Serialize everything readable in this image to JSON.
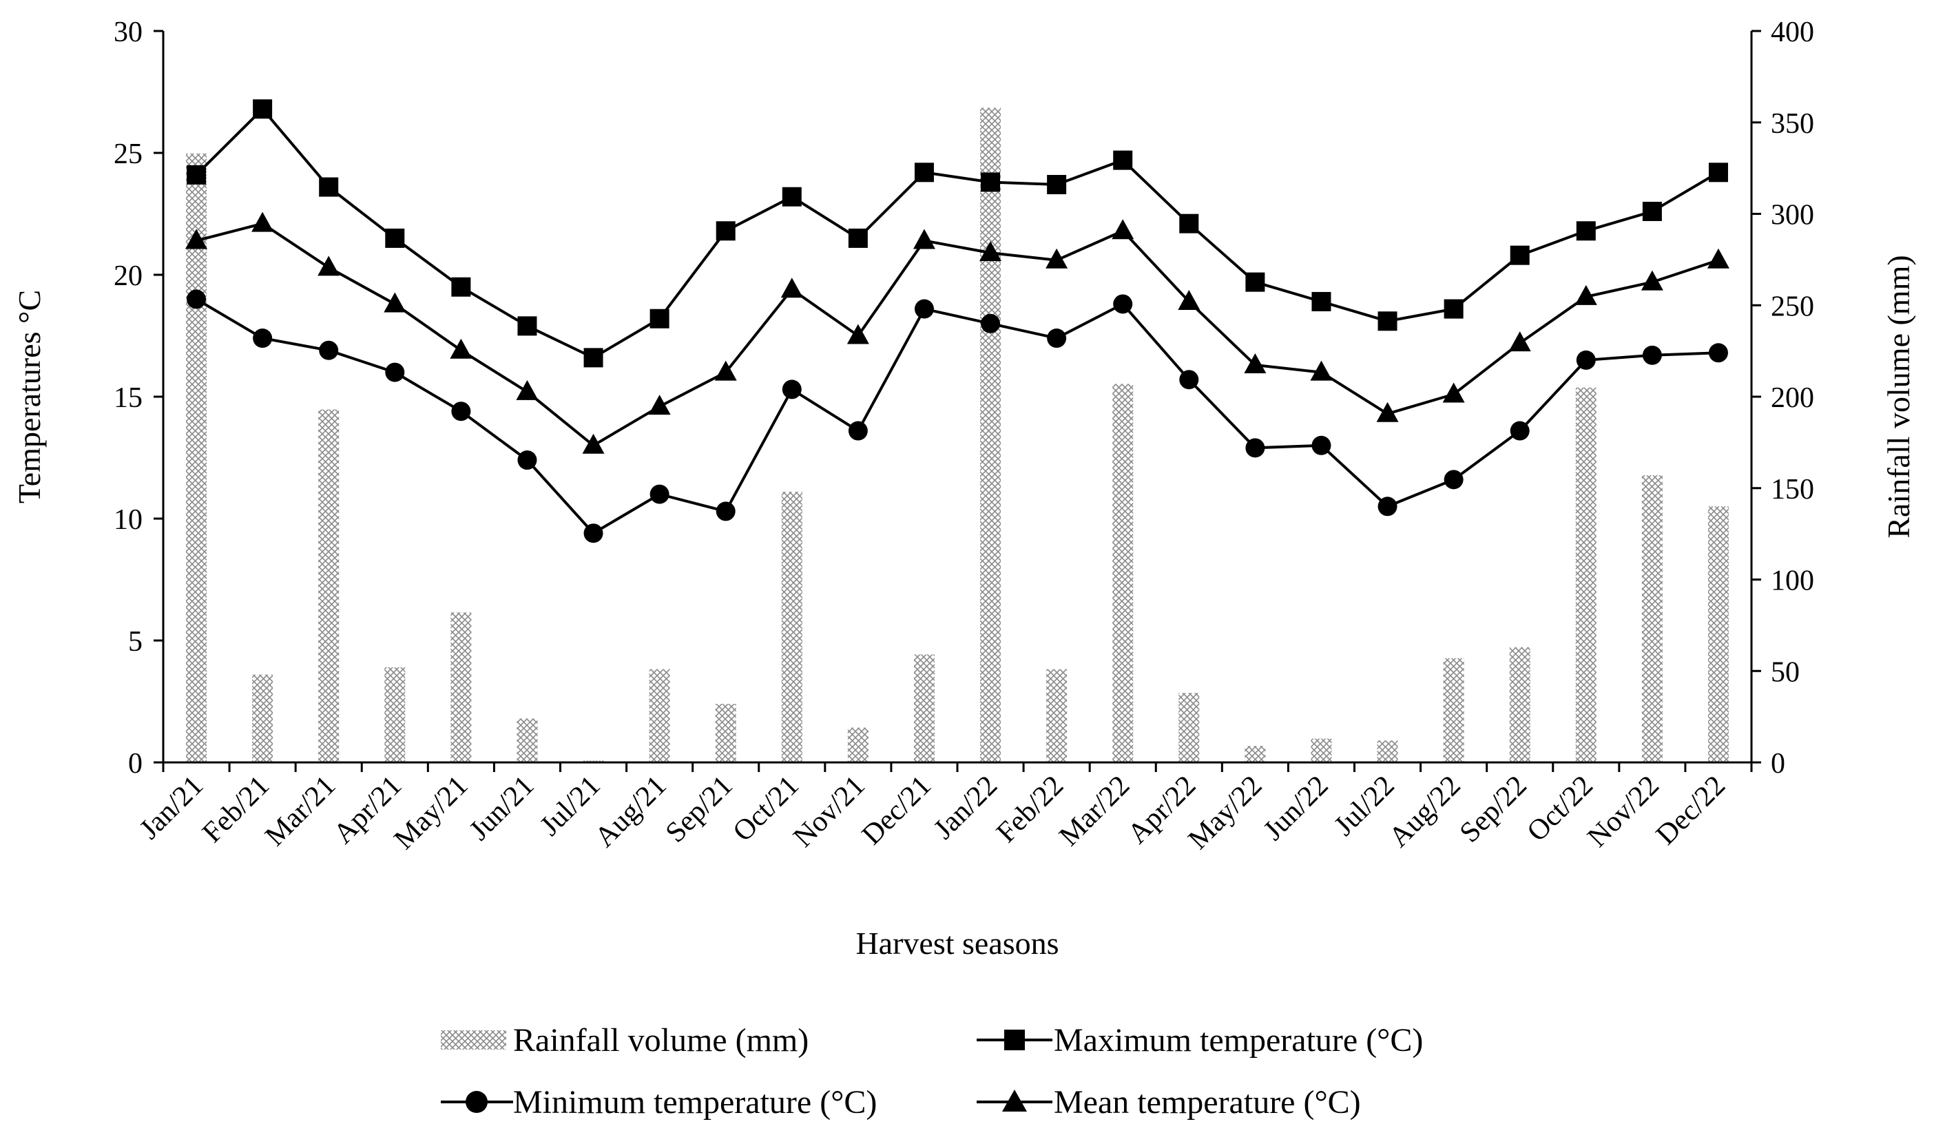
{
  "chart_data": {
    "type": "bar+line",
    "xlabel": "Harvest seasons",
    "ylabel_left": "Temperatures °C",
    "ylabel_right": "Rainfall volume (mm)",
    "ylim_left": [
      0,
      30
    ],
    "ylim_right": [
      0,
      400
    ],
    "yticks_left": [
      "0",
      "5",
      "10",
      "15",
      "20",
      "25",
      "30"
    ],
    "yticks_right": [
      "0",
      "50",
      "100",
      "150",
      "200",
      "250",
      "300",
      "350",
      "400"
    ],
    "categories": [
      "Jan/21",
      "Feb/21",
      "Mar/21",
      "Apr/21",
      "May/21",
      "Jun/21",
      "Jul/21",
      "Aug/21",
      "Sep/21",
      "Oct/21",
      "Nov/21",
      "Dec/21",
      "Jan/22",
      "Feb/22",
      "Mar/22",
      "Apr/22",
      "May/22",
      "Jun/22",
      "Jul/22",
      "Aug/22",
      "Sep/22",
      "Oct/22",
      "Nov/22",
      "Dec/22"
    ],
    "grid": false,
    "legend_position": "bottom",
    "series": [
      {
        "name": "Rainfall volume (mm)",
        "kind": "bar",
        "axis": "right",
        "pattern": "crosshatch",
        "values": [
          333,
          48,
          193,
          52,
          82,
          24,
          1,
          51,
          32,
          148,
          19,
          59,
          358,
          51,
          207,
          38,
          9,
          13,
          12,
          57,
          63,
          205,
          157,
          140
        ]
      },
      {
        "name": "Maximum temperature (°C)",
        "kind": "line",
        "axis": "left",
        "marker": "square",
        "values": [
          24.1,
          26.8,
          23.6,
          21.5,
          19.5,
          17.9,
          16.6,
          18.2,
          21.8,
          23.2,
          21.5,
          24.2,
          23.8,
          23.7,
          24.7,
          22.1,
          19.7,
          18.9,
          18.1,
          18.6,
          20.8,
          21.8,
          22.6,
          24.2
        ]
      },
      {
        "name": "Minimum temperature (°C)",
        "kind": "line",
        "axis": "left",
        "marker": "circle",
        "values": [
          19.0,
          17.4,
          16.9,
          16.0,
          14.4,
          12.4,
          9.4,
          11.0,
          10.3,
          15.3,
          13.6,
          18.6,
          18.0,
          17.4,
          18.8,
          15.7,
          12.9,
          13.0,
          10.5,
          11.6,
          13.6,
          16.5,
          16.7,
          16.8
        ]
      },
      {
        "name": "Mean temperature (°C)",
        "kind": "line",
        "axis": "left",
        "marker": "triangle",
        "values": [
          21.4,
          22.1,
          20.3,
          18.8,
          16.9,
          15.2,
          13.0,
          14.6,
          16.0,
          19.4,
          17.5,
          21.4,
          20.9,
          20.6,
          21.8,
          18.9,
          16.3,
          16.0,
          14.3,
          15.1,
          17.2,
          19.1,
          19.7,
          20.6
        ]
      }
    ]
  }
}
